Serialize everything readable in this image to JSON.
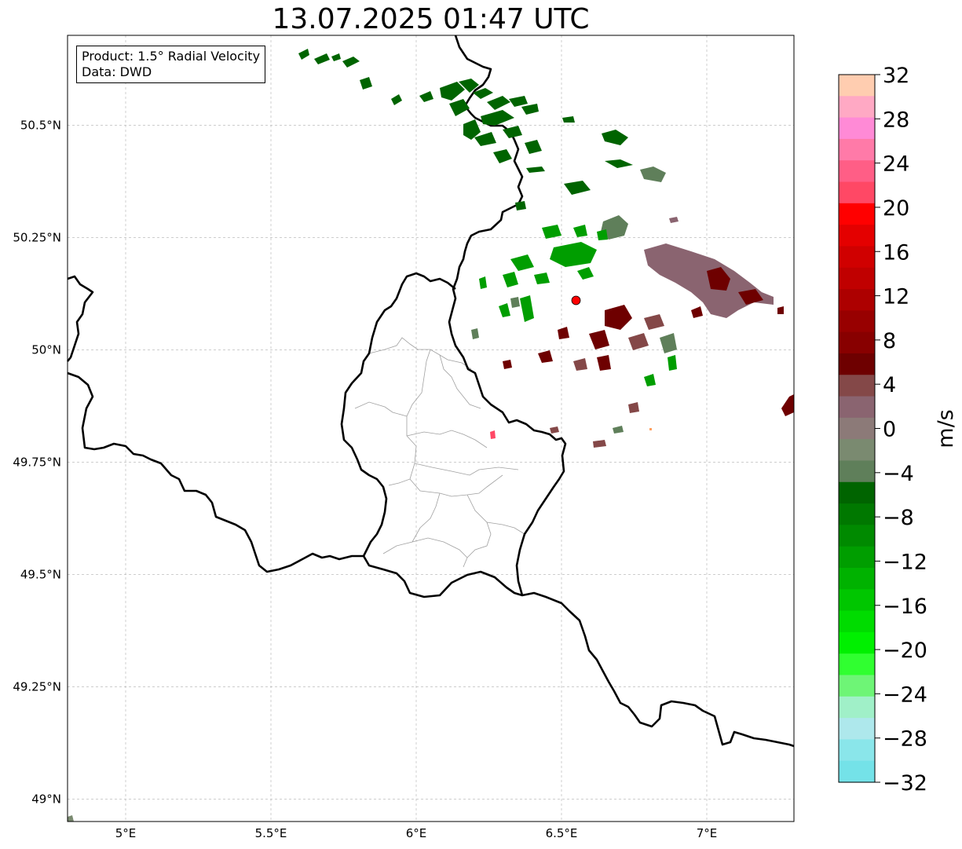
{
  "title": "13.07.2025 01:47 UTC",
  "info": {
    "product": "Product: 1.5° Radial Velocity",
    "source": "Data: DWD"
  },
  "map": {
    "lon_range": [
      4.8,
      7.3
    ],
    "lat_range": [
      48.95,
      50.7
    ],
    "lon_ticks": [
      {
        "value": 5.0,
        "label": "5°E"
      },
      {
        "value": 5.5,
        "label": "5.5°E"
      },
      {
        "value": 6.0,
        "label": "6°E"
      },
      {
        "value": 6.5,
        "label": "6.5°E"
      },
      {
        "value": 7.0,
        "label": "7°E"
      }
    ],
    "lat_ticks": [
      {
        "value": 50.5,
        "label": "50.5°N"
      },
      {
        "value": 50.25,
        "label": "50.25°N"
      },
      {
        "value": 50.0,
        "label": "50°N"
      },
      {
        "value": 49.75,
        "label": "49.75°N"
      },
      {
        "value": 49.5,
        "label": "49.5°N"
      },
      {
        "value": 49.25,
        "label": "49.25°N"
      },
      {
        "value": 49.0,
        "label": "49°N"
      }
    ],
    "gridlines": true,
    "radar_site": {
      "lon": 6.55,
      "lat": 50.11,
      "color": "#ff0000"
    }
  },
  "colorbar": {
    "unit": "m/s",
    "min": -32,
    "max": 32,
    "tick_labels": [
      "32",
      "28",
      "24",
      "20",
      "16",
      "12",
      "8",
      "4",
      "0",
      "−4",
      "−8",
      "−12",
      "−16",
      "−20",
      "−24",
      "−28",
      "−32"
    ],
    "colors_top_to_bottom": [
      "#ffcdb0",
      "#ffa9c4",
      "#ff8ad6",
      "#ff7aa8",
      "#ff5e86",
      "#ff4865",
      "#ff0000",
      "#e40000",
      "#d00000",
      "#c00000",
      "#ad0000",
      "#980000",
      "#880000",
      "#6e0000",
      "#844848",
      "#8a6470",
      "#8c7a78",
      "#7a8a70",
      "#5f7f5a",
      "#006400",
      "#007800",
      "#008a00",
      "#009e00",
      "#00b200",
      "#00c600",
      "#00dc00",
      "#00f000",
      "#30ff30",
      "#6ef576",
      "#a0f0c8",
      "#aee8ec",
      "#8ae6ea",
      "#74e2e8"
    ]
  }
}
